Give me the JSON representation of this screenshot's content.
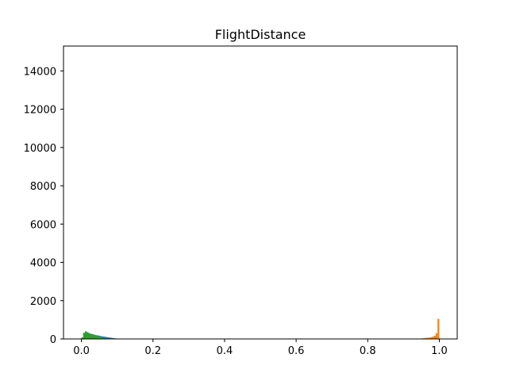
{
  "chart_data": {
    "type": "bar",
    "title": "FlightDistance",
    "xlabel": "",
    "ylabel": "",
    "xlim": [
      -0.05,
      1.05
    ],
    "ylim": [
      0,
      15300
    ],
    "grid": false,
    "x_ticks": [
      {
        "value": 0.0,
        "label": "0.0"
      },
      {
        "value": 0.2,
        "label": "0.2"
      },
      {
        "value": 0.4,
        "label": "0.4"
      },
      {
        "value": 0.6,
        "label": "0.6"
      },
      {
        "value": 0.8,
        "label": "0.8"
      },
      {
        "value": 1.0,
        "label": "1.0"
      }
    ],
    "y_ticks": [
      {
        "value": 0,
        "label": "0"
      },
      {
        "value": 2000,
        "label": "2000"
      },
      {
        "value": 4000,
        "label": "4000"
      },
      {
        "value": 6000,
        "label": "6000"
      },
      {
        "value": 8000,
        "label": "8000"
      },
      {
        "value": 10000,
        "label": "10000"
      },
      {
        "value": 12000,
        "label": "12000"
      },
      {
        "value": 14000,
        "label": "14000"
      }
    ],
    "series": [
      {
        "color": "#1f77b4",
        "bin_width": 0.005,
        "x": [
          0.0,
          0.005,
          0.01,
          0.015,
          0.02,
          0.025,
          0.03,
          0.035,
          0.04,
          0.045,
          0.05,
          0.055,
          0.06,
          0.065,
          0.07,
          0.075,
          0.08,
          0.085,
          0.09,
          0.095,
          0.1,
          0.105
        ],
        "values": [
          60,
          300,
          380,
          330,
          290,
          260,
          240,
          215,
          195,
          180,
          160,
          140,
          125,
          110,
          95,
          80,
          65,
          50,
          38,
          25,
          12,
          5
        ]
      },
      {
        "color": "#ff7f0e",
        "bin_width": 0.005,
        "x": [
          0.94,
          0.945,
          0.95,
          0.955,
          0.96,
          0.965,
          0.97,
          0.975,
          0.98,
          0.985,
          0.99,
          0.995
        ],
        "values": [
          10,
          20,
          30,
          40,
          50,
          60,
          70,
          90,
          120,
          170,
          300,
          1050
        ]
      },
      {
        "color": "#2ca02c",
        "bin_width": 0.005,
        "x": [
          0.0,
          0.005,
          0.01,
          0.015,
          0.02,
          0.025,
          0.03,
          0.035,
          0.04,
          0.045,
          0.05,
          0.055,
          0.06
        ],
        "values": [
          80,
          320,
          400,
          350,
          300,
          270,
          240,
          210,
          180,
          150,
          120,
          90,
          60
        ]
      }
    ]
  }
}
